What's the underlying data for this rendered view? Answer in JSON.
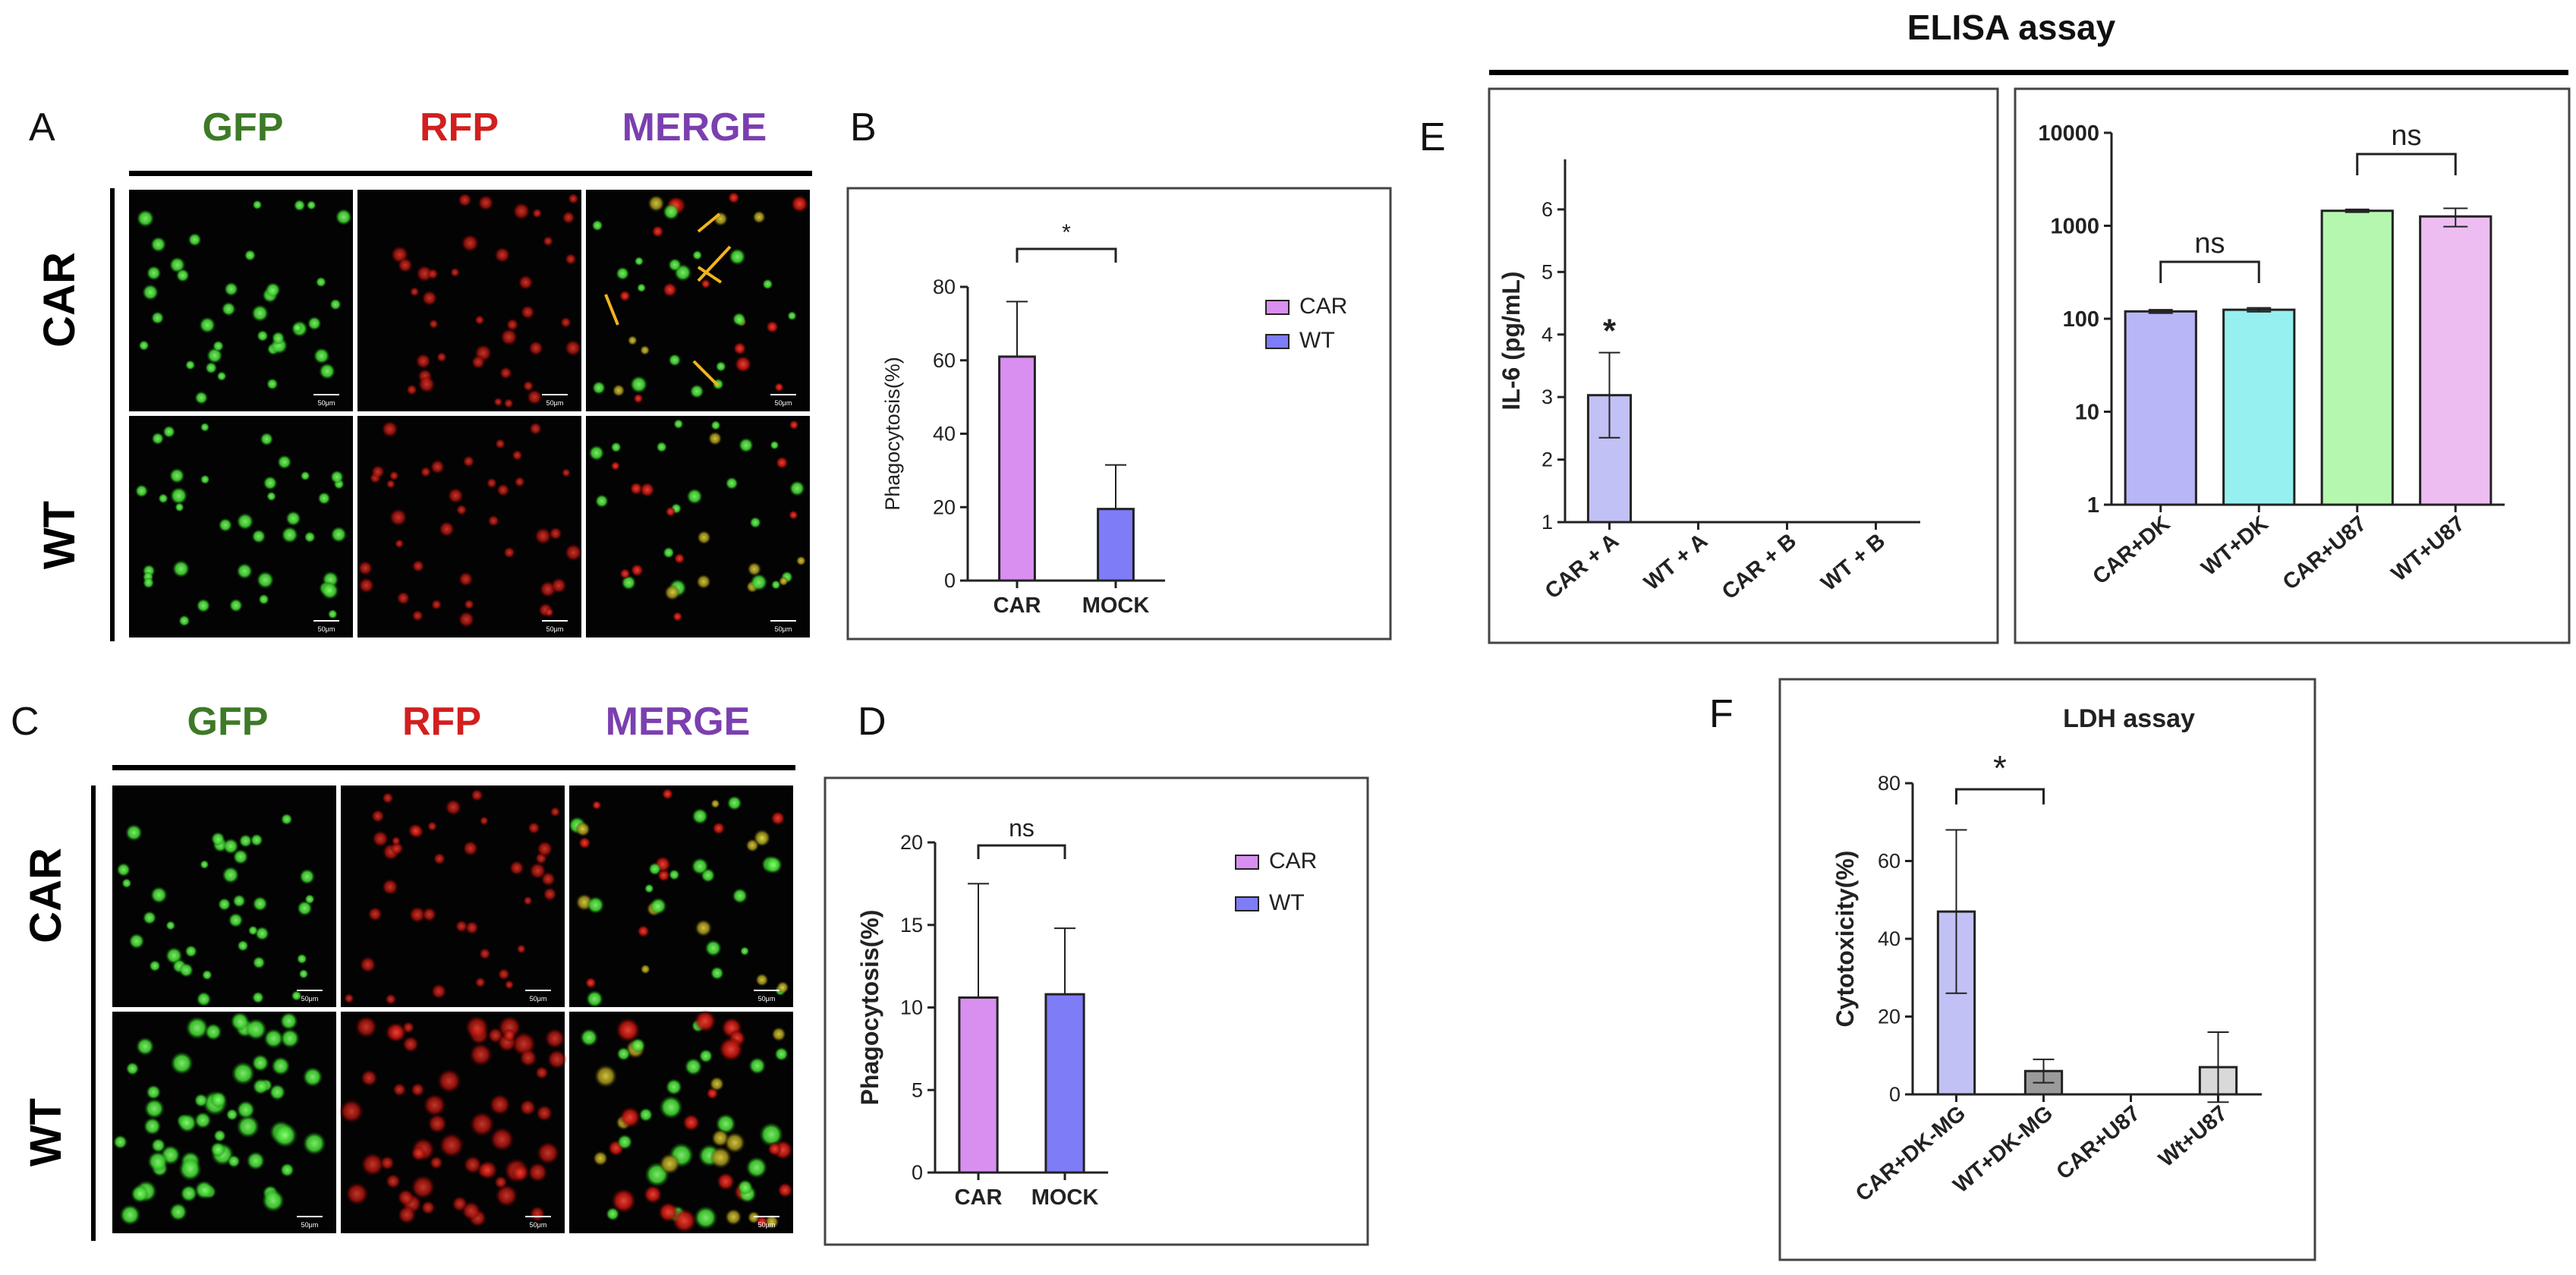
{
  "figure": {
    "panel_letters": {
      "A": "A",
      "B": "B",
      "C": "C",
      "D": "D",
      "E": "E",
      "F": "F"
    },
    "microscopy": {
      "column_headers": [
        "GFP",
        "RFP",
        "MERGE"
      ],
      "column_colors": [
        "#3d7a27",
        "#d21f1f",
        "#7b3fb0"
      ],
      "row_headers": [
        "CAR",
        "WT"
      ],
      "scale_bar_label": "50μm"
    },
    "elisa_header": "ELISA assay"
  },
  "chart_data": [
    {
      "panel": "B",
      "type": "bar",
      "categories": [
        "CAR",
        "MOCK"
      ],
      "values": [
        61,
        19.5
      ],
      "errors": [
        15,
        12
      ],
      "ylabel": "Phagocytosis(%)",
      "ylim": [
        0,
        80
      ],
      "yticks": [
        0,
        20,
        40,
        60,
        80
      ],
      "colors": [
        "#d98ff0",
        "#7e7cf7"
      ],
      "legend": [
        "CAR",
        "WT"
      ],
      "legend_position": "right",
      "significance": {
        "pair": [
          0,
          1
        ],
        "label": "*"
      }
    },
    {
      "panel": "D",
      "type": "bar",
      "categories": [
        "CAR",
        "MOCK"
      ],
      "values": [
        10.6,
        10.8
      ],
      "errors": [
        6.9,
        4.0
      ],
      "ylabel": "Phagocytosis(%)",
      "ylim": [
        0,
        20
      ],
      "yticks": [
        0,
        5,
        10,
        15,
        20
      ],
      "colors": [
        "#d98ff0",
        "#7e7cf7"
      ],
      "legend": [
        "CAR",
        "WT"
      ],
      "legend_position": "right",
      "significance": {
        "pair": [
          0,
          1
        ],
        "label": "ns"
      }
    },
    {
      "panel": "E-left",
      "type": "bar",
      "categories": [
        "CAR + A",
        "WT + A",
        "CAR + B",
        "WT + B"
      ],
      "values": [
        3.03,
        1,
        1,
        1
      ],
      "errors": [
        0.68,
        0,
        0,
        0
      ],
      "ylabel": "IL-6 (pg/mL)",
      "ylim": [
        1,
        6.8
      ],
      "yticks": [
        1,
        2,
        3,
        4,
        5,
        6
      ],
      "colors": [
        "#c2c1f5",
        "#ffffff",
        "#ffffff",
        "#ffffff"
      ],
      "annotation": "*"
    },
    {
      "panel": "E-right",
      "type": "bar",
      "log_scale": true,
      "categories": [
        "CAR+DK",
        "WT+DK",
        "CAR+U87",
        "WT+U87"
      ],
      "values": [
        120,
        125,
        1450,
        1260
      ],
      "errors": [
        5,
        6,
        50,
        280
      ],
      "ylim": [
        1,
        10000
      ],
      "yticks": [
        1,
        10,
        100,
        1000,
        10000
      ],
      "colors": [
        "#b8b6f5",
        "#96f0f0",
        "#b6f7b0",
        "#edbdf2"
      ],
      "significance": [
        {
          "pair": [
            0,
            1
          ],
          "label": "ns"
        },
        {
          "pair": [
            2,
            3
          ],
          "label": "ns"
        }
      ]
    },
    {
      "panel": "F",
      "type": "bar",
      "title": "LDH assay",
      "categories": [
        "CAR+DK-MG",
        "WT+DK-MG",
        "CAR+U87",
        "Wt+U87"
      ],
      "values": [
        47,
        6,
        0,
        7
      ],
      "errors": [
        21,
        3,
        0,
        9
      ],
      "ylabel": "Cytotoxicity(%)",
      "ylim": [
        0,
        80
      ],
      "yticks": [
        0,
        20,
        40,
        60,
        80
      ],
      "colors": [
        "#c2c1f5",
        "#9a9a9a",
        "#ffffff",
        "#d9d9d9"
      ],
      "significance": {
        "pair": [
          0,
          1
        ],
        "label": "*"
      }
    }
  ]
}
